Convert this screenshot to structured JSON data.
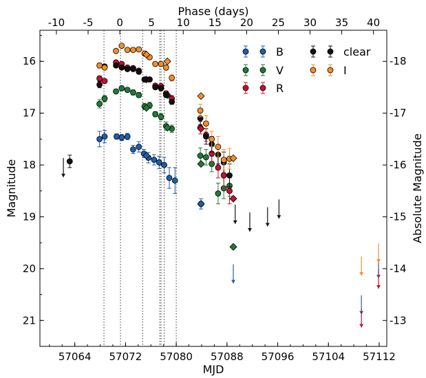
{
  "chart_data": {
    "type": "scatter",
    "xlabel": "MJD",
    "ylabel": "Magnitude",
    "top_xlabel": "Phase (days)",
    "right_ylabel": "Absolute Magnitude",
    "xlim": [
      57058.5,
      57113.2
    ],
    "ylim": [
      21.5,
      15.4
    ],
    "x_ticks": [
      "57064",
      "57072",
      "57080",
      "57088",
      "57096",
      "57104",
      "57112"
    ],
    "y_ticks": [
      "16",
      "17",
      "18",
      "19",
      "20",
      "21"
    ],
    "phase_ticks": [
      "-10",
      "-5",
      "0",
      "5",
      "10",
      "15",
      "20",
      "25",
      "30",
      "35",
      "40"
    ],
    "phase_zero_mjd": 57071.1,
    "abs_mag_ticks": [
      "-18",
      "-17",
      "-16",
      "-15",
      "-14",
      "-13"
    ],
    "abs_mag_offset": 34.0,
    "phase_markers_mjd": [
      57068.6,
      57071.2,
      57074.7,
      57077.4,
      57077.6,
      57078.1,
      57080.0
    ],
    "legend": [
      "B",
      "V",
      "R",
      "clear",
      "I"
    ],
    "grid": false,
    "series": [
      {
        "name": "B",
        "color": "#1f5fa8",
        "x": [
          57067.9,
          57068.7,
          57070.6,
          57071.4,
          57072.3,
          57073.2,
          57074.1,
          57074.9,
          57075.6,
          57076.5,
          57077.3,
          57078.1,
          57078.9,
          57079.8,
          57083.9
        ],
        "y": [
          17.5,
          17.45,
          17.45,
          17.47,
          17.45,
          17.7,
          17.65,
          17.78,
          17.86,
          17.9,
          17.95,
          18.0,
          18.25,
          18.3,
          18.75
        ],
        "err": [
          0.15,
          0.12,
          0.05,
          0.06,
          0.06,
          0.08,
          0.1,
          0.08,
          0.1,
          0.1,
          0.12,
          0.15,
          0.2,
          0.25,
          0.1
        ],
        "diamonds": [
          [
            57075.3,
            17.82
          ],
          [
            57083.9,
            18.75
          ]
        ],
        "upper_limits": [
          [
            57089.0,
            20.1
          ],
          [
            57109.2,
            20.7
          ],
          [
            57111.9,
            20.0
          ]
        ]
      },
      {
        "name": "V",
        "color": "#217a38",
        "x": [
          57067.9,
          57068.7,
          57070.5,
          57071.4,
          57072.3,
          57073.2,
          57074.1,
          57075.0,
          57075.8,
          57076.7,
          57077.6,
          57078.4,
          57079.3,
          57083.8,
          57084.7,
          57085.6,
          57086.6,
          57087.5,
          57088.4
        ],
        "y": [
          16.82,
          16.72,
          16.58,
          16.52,
          16.55,
          16.6,
          16.65,
          16.87,
          16.85,
          17.02,
          17.07,
          17.25,
          17.3,
          17.82,
          17.85,
          17.98,
          18.55,
          18.45,
          18.4
        ],
        "err": [
          0.08,
          0.06,
          0.04,
          0.04,
          0.04,
          0.05,
          0.05,
          0.06,
          0.06,
          0.05,
          0.06,
          0.08,
          0.07,
          0.15,
          0.15,
          0.15,
          0.2,
          0.2,
          0.2
        ],
        "diamonds": [
          [
            57075.3,
            16.9
          ],
          [
            57078.6,
            17.28
          ],
          [
            57083.9,
            17.98
          ],
          [
            57089.0,
            19.58
          ]
        ],
        "upper_limits": []
      },
      {
        "name": "R",
        "color": "#c8102e",
        "x": [
          57067.9,
          57068.7,
          57070.5,
          57071.4,
          57072.3,
          57073.2,
          57074.1,
          57075.0,
          57075.8,
          57076.7,
          57077.6,
          57078.4,
          57079.3,
          57083.8,
          57084.7,
          57085.6,
          57086.6,
          57087.5,
          57088.4
        ],
        "y": [
          16.33,
          16.38,
          16.02,
          16.05,
          16.12,
          16.13,
          16.18,
          16.35,
          16.35,
          16.47,
          16.48,
          16.62,
          16.72,
          17.28,
          17.42,
          17.78,
          18.05,
          18.2,
          18.5
        ],
        "err": [
          0.05,
          0.04,
          0.03,
          0.03,
          0.03,
          0.03,
          0.04,
          0.04,
          0.04,
          0.04,
          0.04,
          0.05,
          0.06,
          0.12,
          0.12,
          0.15,
          0.2,
          0.25,
          0.25
        ],
        "diamonds": [
          [
            57075.3,
            16.35
          ],
          [
            57078.6,
            16.65
          ],
          [
            57083.9,
            17.3
          ],
          [
            57089.0,
            18.65
          ]
        ],
        "upper_limits": [
          [
            57109.2,
            20.95
          ],
          [
            57111.9,
            20.2
          ]
        ]
      },
      {
        "name": "clear",
        "color": "#111111",
        "x": [
          57063.2,
          57067.9,
          57068.7,
          57070.5,
          57071.4,
          57072.3,
          57073.2,
          57074.1,
          57075.0,
          57075.8,
          57076.7,
          57077.6,
          57078.4,
          57079.3,
          57083.8,
          57084.7,
          57085.6,
          57086.6,
          57087.5,
          57088.4
        ],
        "y": [
          17.93,
          16.45,
          16.1,
          16.08,
          16.12,
          16.15,
          16.15,
          16.2,
          16.35,
          16.35,
          16.5,
          16.52,
          16.65,
          16.78,
          17.1,
          17.45,
          17.6,
          17.8,
          17.95,
          18.2
        ],
        "err": [
          0.12,
          0.06,
          0.04,
          0.03,
          0.03,
          0.03,
          0.03,
          0.04,
          0.04,
          0.04,
          0.04,
          0.04,
          0.05,
          0.05,
          0.12,
          0.15,
          0.15,
          0.18,
          0.2,
          0.22
        ],
        "diamonds": [],
        "upper_limits": [
          [
            57062.2,
            18.05
          ],
          [
            57089.3,
            18.95
          ],
          [
            57091.6,
            19.1
          ],
          [
            57094.4,
            19.0
          ],
          [
            57096.2,
            18.85
          ]
        ]
      },
      {
        "name": "I",
        "color": "#f28e2b",
        "x": [
          57067.9,
          57068.7,
          57070.5,
          57071.4,
          57072.3,
          57073.2,
          57074.1,
          57075.0,
          57075.8,
          57076.7,
          57077.6,
          57078.4,
          57079.3,
          57083.8,
          57084.7,
          57085.6,
          57086.6,
          57087.5,
          57088.4
        ],
        "y": [
          16.08,
          16.12,
          15.8,
          15.7,
          15.78,
          15.78,
          15.77,
          15.85,
          15.92,
          16.05,
          16.05,
          16.12,
          16.32,
          16.95,
          17.2,
          17.5,
          17.65,
          17.9,
          17.88
        ],
        "err": [
          0.05,
          0.04,
          0.03,
          0.03,
          0.03,
          0.03,
          0.03,
          0.04,
          0.04,
          0.04,
          0.04,
          0.05,
          0.06,
          0.12,
          0.15,
          0.15,
          0.2,
          0.2,
          0.2
        ],
        "diamonds": [
          [
            57075.3,
            15.87
          ],
          [
            57078.6,
            16.0
          ],
          [
            57083.9,
            16.67
          ],
          [
            57089.0,
            17.87
          ]
        ],
        "upper_limits": [
          [
            57109.2,
            19.95
          ],
          [
            57111.9,
            19.7
          ]
        ]
      }
    ]
  }
}
